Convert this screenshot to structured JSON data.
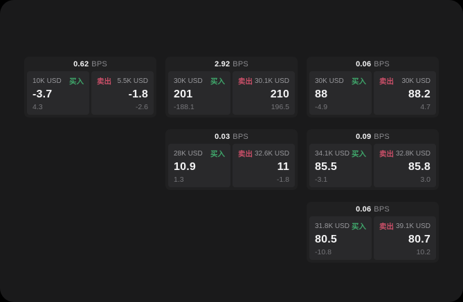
{
  "colors": {
    "outer": "#000000",
    "surface": "#1a1a1b",
    "card": "#202021",
    "panel": "#29292b",
    "value": "#f3f3f4",
    "label": "#98989c",
    "sub": "#76767a",
    "unit": "#8a8a8e",
    "buy": "#3fa56a",
    "sell": "#c94f68"
  },
  "labels": {
    "buy": "买入",
    "sell": "卖出",
    "bps_unit": "BPS"
  },
  "cards": [
    {
      "row": 1,
      "col": 1,
      "bps": "0.62",
      "buy": {
        "size": "10K USD",
        "value": "-3.7",
        "sub": "4.3"
      },
      "sell": {
        "size": "5.5K USD",
        "value": "-1.8",
        "sub": "-2.6"
      }
    },
    {
      "row": 1,
      "col": 2,
      "bps": "2.92",
      "buy": {
        "size": "30K USD",
        "value": "201",
        "sub": "-188.1"
      },
      "sell": {
        "size": "30.1K USD",
        "value": "210",
        "sub": "196.5"
      }
    },
    {
      "row": 1,
      "col": 3,
      "bps": "0.06",
      "buy": {
        "size": "30K USD",
        "value": "88",
        "sub": "-4.9"
      },
      "sell": {
        "size": "30K USD",
        "value": "88.2",
        "sub": "4.7"
      }
    },
    {
      "row": 2,
      "col": 2,
      "bps": "0.03",
      "buy": {
        "size": "28K USD",
        "value": "10.9",
        "sub": "1.3"
      },
      "sell": {
        "size": "32.6K USD",
        "value": "11",
        "sub": "-1.8"
      }
    },
    {
      "row": 2,
      "col": 3,
      "bps": "0.09",
      "buy": {
        "size": "34.1K USD",
        "value": "85.5",
        "sub": "-3.1"
      },
      "sell": {
        "size": "32.8K USD",
        "value": "85.8",
        "sub": "3.0"
      }
    },
    {
      "row": 3,
      "col": 3,
      "bps": "0.06",
      "buy": {
        "size": "31.8K USD",
        "value": "80.5",
        "sub": "-10.8"
      },
      "sell": {
        "size": "39.1K USD",
        "value": "80.7",
        "sub": "10.2"
      }
    }
  ]
}
